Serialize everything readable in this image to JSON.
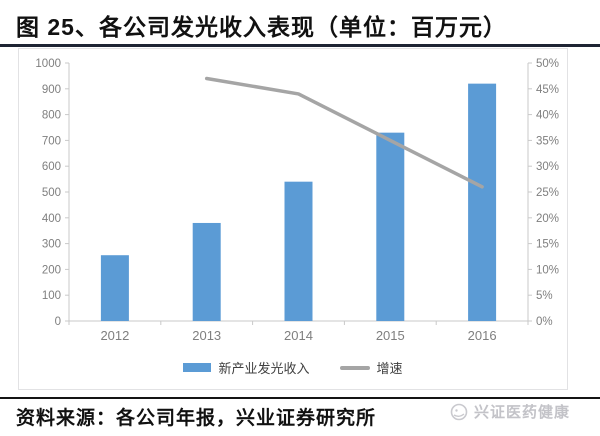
{
  "header": {
    "title": "图 25、各公司发光收入表现（单位：百万元）"
  },
  "chart_data": {
    "type": "bar",
    "title": "各公司发光收入表现（单位：百万元）",
    "categories": [
      "2012",
      "2013",
      "2014",
      "2015",
      "2016"
    ],
    "series": [
      {
        "name": "新产业发光收入",
        "type": "bar",
        "axis": "left",
        "values": [
          255,
          380,
          540,
          730,
          920
        ]
      },
      {
        "name": "增速",
        "type": "line",
        "axis": "right",
        "unit": "%",
        "values": [
          null,
          47,
          44,
          35,
          26
        ]
      }
    ],
    "left_axis": {
      "min": 0,
      "max": 1000,
      "step": 100,
      "labels": [
        "0",
        "100",
        "200",
        "300",
        "400",
        "500",
        "600",
        "700",
        "800",
        "900",
        "1000"
      ]
    },
    "right_axis": {
      "min": 0,
      "max": 50,
      "step": 5,
      "labels": [
        "0%",
        "5%",
        "10%",
        "15%",
        "20%",
        "25%",
        "30%",
        "35%",
        "40%",
        "45%",
        "50%"
      ]
    },
    "grid": false,
    "legend_position": "bottom",
    "legend": [
      {
        "label": "新产业发光收入",
        "swatch": "bar",
        "color": "#5b9bd5"
      },
      {
        "label": "增速",
        "swatch": "line",
        "color": "#a5a5a5"
      }
    ]
  },
  "footer": {
    "source": "资料来源：各公司年报，兴业证券研究所",
    "watermark": "兴证医药健康"
  },
  "colors": {
    "bar": "#5b9bd5",
    "line": "#a5a5a5",
    "axis_line": "#c9c9c9",
    "axis_text": "#7f7f7f",
    "title_rule_navy": "#1e2433",
    "footer_rule_black": "#141414",
    "watermark_gray": "#c3c3c8"
  }
}
